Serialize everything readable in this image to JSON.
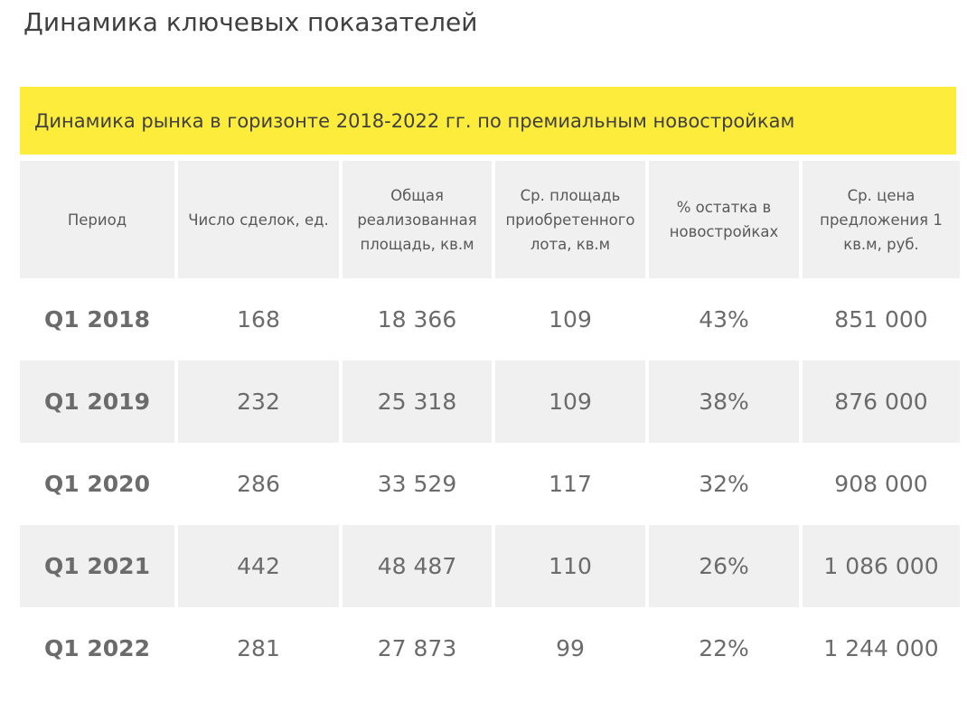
{
  "page_title": "Динамика ключевых показателей",
  "banner": {
    "text": "Динамика рынка в горизонте 2018-2022 гг. по премиальным новостройкам",
    "color": "#fdec3c"
  },
  "table": {
    "headers": [
      "Период",
      "Число сделок, ед.",
      "Общая реализованная площадь, кв.м",
      "Ср. площадь приобретенного лота, кв.м",
      "% остатка в новостройках",
      "Ср. цена предложения 1 кв.м, руб."
    ],
    "rows": [
      [
        "Q1 2018",
        "168",
        "18 366",
        "109",
        "43%",
        "851 000"
      ],
      [
        "Q1 2019",
        "232",
        "25 318",
        "109",
        "38%",
        "876 000"
      ],
      [
        "Q1 2020",
        "286",
        "33 529",
        "117",
        "32%",
        "908 000"
      ],
      [
        "Q1 2021",
        "442",
        "48 487",
        "110",
        "26%",
        "1 086 000"
      ],
      [
        "Q1 2022",
        "281",
        "27 873",
        "99",
        "22%",
        "1 244 000"
      ]
    ]
  }
}
